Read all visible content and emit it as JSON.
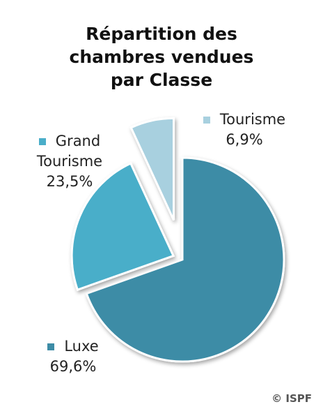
{
  "chart_data": {
    "type": "pie",
    "title": "Répartition des chambres vendues par Classe",
    "categories": [
      "Luxe",
      "Grand Tourisme",
      "Tourisme"
    ],
    "values": [
      69.6,
      23.5,
      6.9
    ],
    "value_labels": [
      "69,6%",
      "23,5%",
      "6,9%"
    ],
    "colors": [
      "#3d8ca6",
      "#4aaec9",
      "#a8d0df"
    ],
    "source": "© ISPF"
  }
}
